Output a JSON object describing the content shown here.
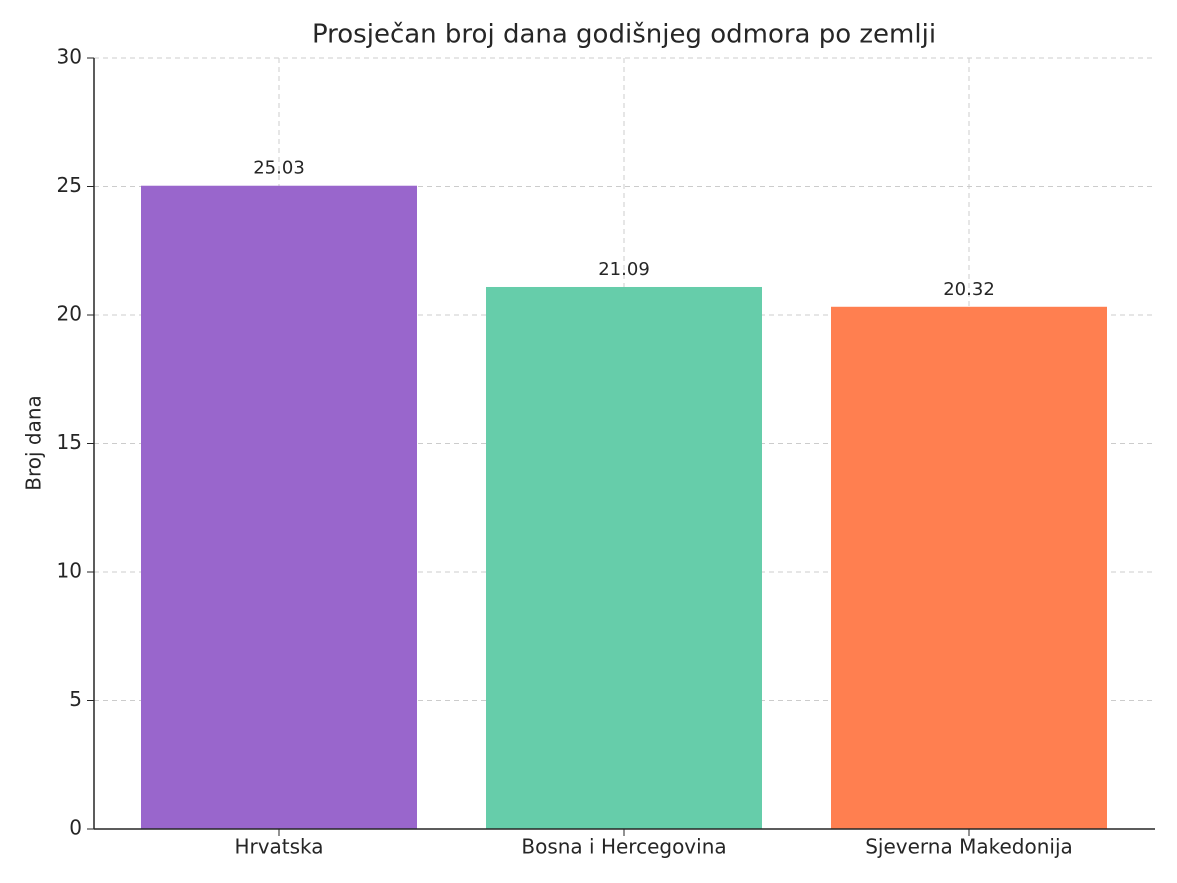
{
  "chart_data": {
    "type": "bar",
    "title": "Prosječan broj dana godišnjeg odmora po zemlji",
    "y_label": "Broj dana",
    "categories": [
      "Hrvatska",
      "Bosna i Hercegovina",
      "Sjeverna Makedonija"
    ],
    "values": [
      25.03,
      21.09,
      20.32
    ],
    "colors": [
      "#9966cc",
      "#66cdaa",
      "#ff7f50"
    ],
    "ylim": [
      0,
      30
    ],
    "yticks": [
      0,
      5,
      10,
      15,
      20,
      25,
      30
    ],
    "grid": true
  }
}
